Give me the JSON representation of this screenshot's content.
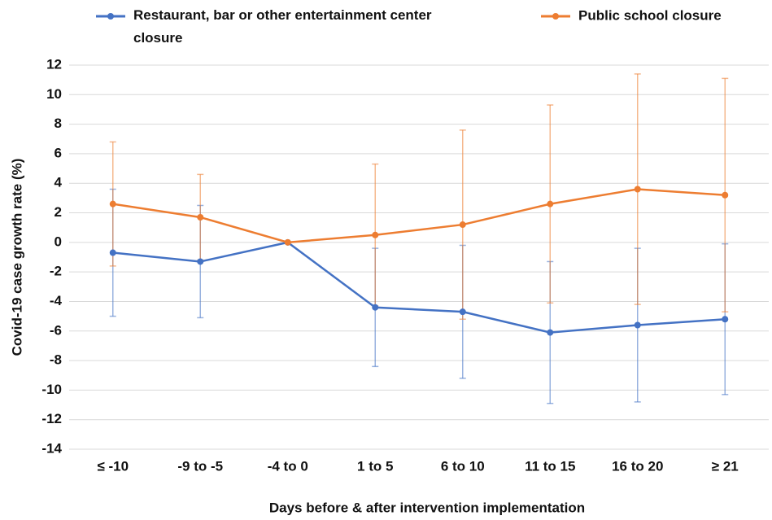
{
  "chart_data": {
    "type": "line",
    "xlabel": "Days before & after intervention implementation",
    "ylabel": "Covid-19 case growth rate (%)",
    "categories": [
      "≤ -10",
      "-9 to -5",
      "-4 to 0",
      "1 to 5",
      "6 to 10",
      "11 to 15",
      "16 to 20",
      "≥ 21"
    ],
    "series": [
      {
        "name": "Restaurant, bar or other entertainment center closure",
        "color": "#4472c4",
        "values": [
          -0.7,
          -1.3,
          0,
          -4.4,
          -4.7,
          -6.1,
          -5.6,
          -5.2
        ],
        "errors": [
          4.3,
          3.8,
          0,
          4.0,
          4.5,
          4.8,
          5.2,
          5.1
        ]
      },
      {
        "name": "Public school closure",
        "color": "#ed7d31",
        "values": [
          2.6,
          1.7,
          0,
          0.5,
          1.2,
          2.6,
          3.6,
          3.2
        ],
        "errors": [
          4.2,
          2.9,
          0,
          4.8,
          6.4,
          6.7,
          7.8,
          7.9
        ]
      }
    ],
    "ylim": [
      -14,
      12
    ],
    "yticks": [
      -14,
      -12,
      -10,
      -8,
      -6,
      -4,
      -2,
      0,
      2,
      4,
      6,
      8,
      10,
      12
    ],
    "grid": true,
    "legend": "top"
  }
}
